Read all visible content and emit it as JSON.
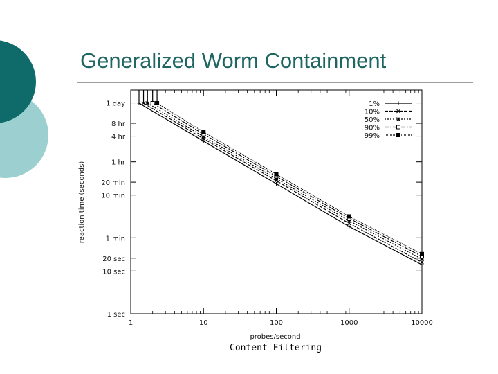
{
  "slide": {
    "title": "Generalized Worm Containment",
    "caption": "Content Filtering",
    "colors": {
      "title": "#1f6663",
      "circle_dark": "#0e6b69",
      "circle_light": "#9ccfcf"
    }
  },
  "chart_data": {
    "type": "line",
    "title": "",
    "xlabel": "probes/second",
    "ylabel": "reaction time (seconds)",
    "x_scale": "log",
    "y_scale": "log",
    "xlim": [
      1,
      10000
    ],
    "ylim_seconds": [
      1,
      172800
    ],
    "x_ticks": [
      {
        "value": 1,
        "label": "1"
      },
      {
        "value": 10,
        "label": "10"
      },
      {
        "value": 100,
        "label": "100"
      },
      {
        "value": 1000,
        "label": "1000"
      },
      {
        "value": 10000,
        "label": "10000"
      }
    ],
    "y_ticks": [
      {
        "value": 1,
        "label": "1 sec"
      },
      {
        "value": 10,
        "label": "10 sec"
      },
      {
        "value": 20,
        "label": "20 sec"
      },
      {
        "value": 60,
        "label": "1 min"
      },
      {
        "value": 600,
        "label": "10 min"
      },
      {
        "value": 1200,
        "label": "20 min"
      },
      {
        "value": 3600,
        "label": "1 hr"
      },
      {
        "value": 14400,
        "label": "4 hr"
      },
      {
        "value": 28800,
        "label": "8 hr"
      },
      {
        "value": 86400,
        "label": "1 day"
      }
    ],
    "legend_position": "top-right",
    "grid": false,
    "series": [
      {
        "name": "1%",
        "marker": "plus",
        "x": [
          1.3,
          10,
          100,
          1000,
          10000
        ],
        "values": [
          85000,
          11000,
          1100,
          110,
          14
        ]
      },
      {
        "name": "10%",
        "marker": "cross",
        "x": [
          1.5,
          10,
          100,
          1000,
          10000
        ],
        "values": [
          85000,
          12500,
          1300,
          130,
          16
        ]
      },
      {
        "name": "50%",
        "marker": "asterisk",
        "x": [
          1.7,
          10,
          100,
          1000,
          10000
        ],
        "values": [
          85000,
          14000,
          1450,
          150,
          19
        ]
      },
      {
        "name": "90%",
        "marker": "open-square",
        "x": [
          2.0,
          10,
          100,
          1000,
          10000
        ],
        "values": [
          85000,
          16000,
          1650,
          170,
          22
        ]
      },
      {
        "name": "99%",
        "marker": "filled-square",
        "x": [
          2.3,
          10,
          100,
          1000,
          10000
        ],
        "values": [
          85000,
          18000,
          1850,
          190,
          25
        ]
      }
    ]
  }
}
